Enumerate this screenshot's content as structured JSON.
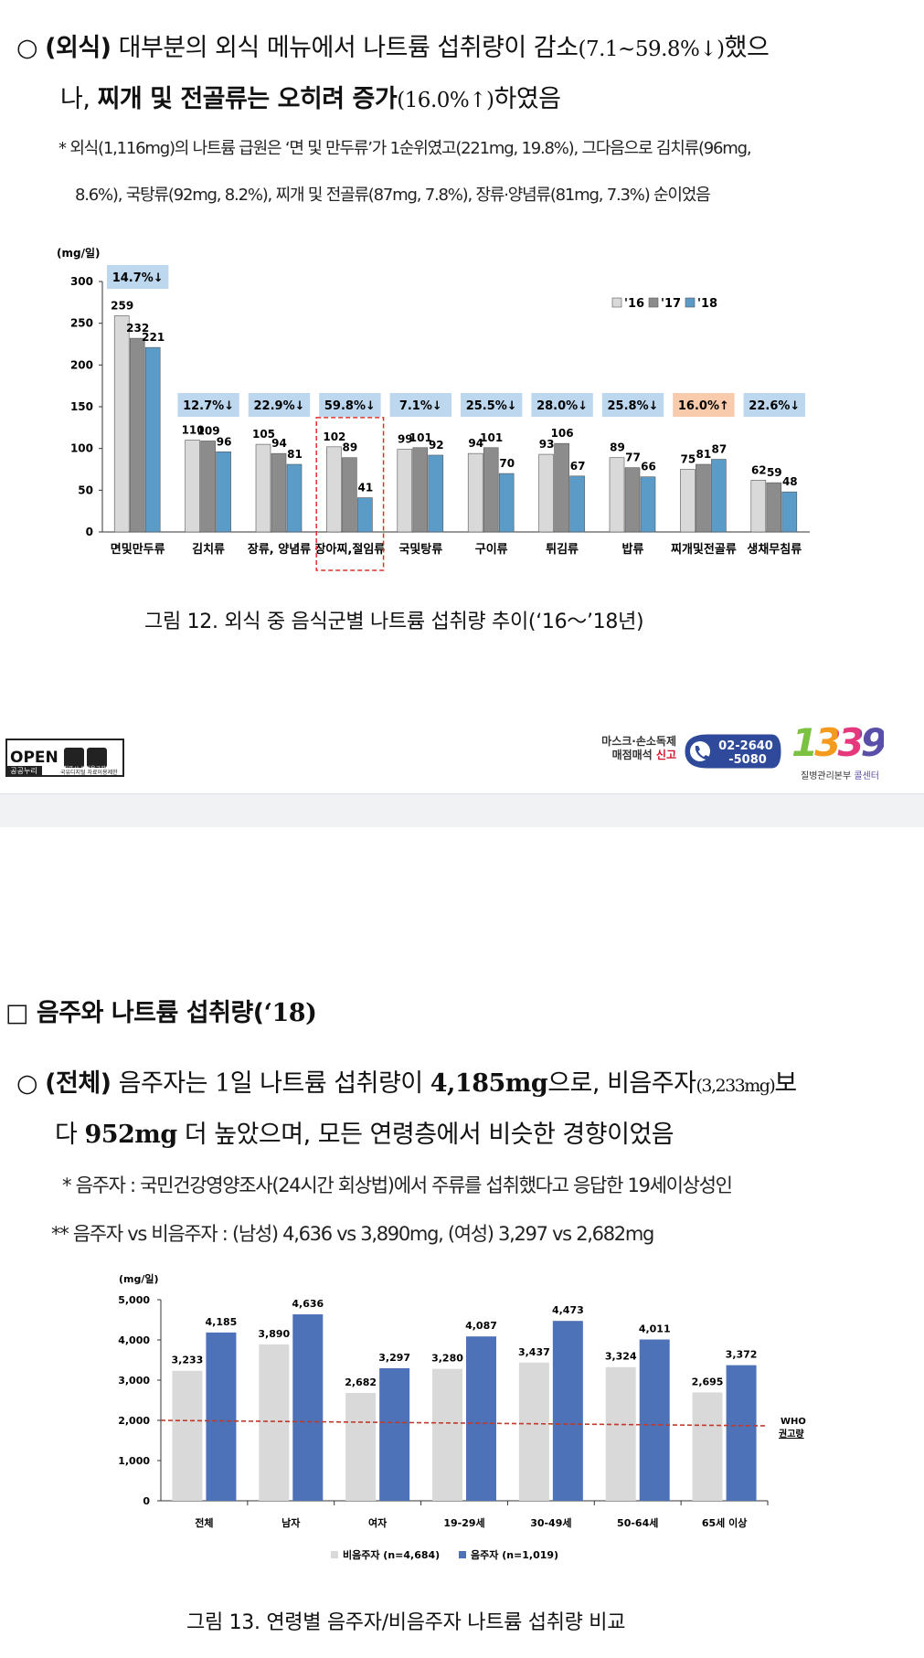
{
  "section1": {
    "para1_line1": [
      "○ ",
      "(외식)",
      " 대부분의 외식 메뉴에서 나트륨 섭취량이 감소",
      "(7.1~59.8%↓)",
      "했으"
    ],
    "para1_line2": [
      "나, ",
      "찌개 및 전골류는 오히려 증가",
      "(16.0%↑)",
      "하였음"
    ],
    "note_line1": "* 외식(1,116mg)의 나트륨 급원은 ‘면 및 만두류’가 1순위였고(221mg, 19.8%), 그다음으로 김치류(96mg,",
    "note_line2": "8.6%), 국탕류(92mg, 8.2%), 찌개 및 전골류(87mg, 7.8%), 장류·양념류(81mg, 7.3%) 순이었음",
    "caption": "그림 12. 외식 중 음식군별 나트륨 섭취량 추이(‘16～’18년)"
  },
  "footer": {
    "open_label": "OPEN",
    "open_sub": "공공누리",
    "open_sub2": "출처표시 상업용금지",
    "open_sub3": "국유디지털 자료이용제한",
    "hotline_text1": "마스크·손소독제",
    "hotline_text2": "매점매석 ",
    "hotline_text3": "신고",
    "hotline_number1": "02-2640",
    "hotline_number2": "-5080",
    "callcenter_number": "1339",
    "callcenter_label1": "질병관리본부 ",
    "callcenter_label2": "콜센터"
  },
  "section2": {
    "heading": [
      "□ 음주와 나트륨 섭취량(",
      "‘18)"
    ],
    "para_line1": [
      "○ ",
      "(전체)",
      " 음주자는 ",
      "1",
      "일 나트륨 섭취량이 ",
      "4,185mg",
      "으로, 비음주자",
      "(3,233mg)",
      "보"
    ],
    "para_line2": [
      "다 ",
      "952mg",
      " 더 높았으며, 모든 연령층에서 비슷한 경향이었음"
    ],
    "note1": "* 음주자 : 국민건강영양조사(24시간 회상법)에서 주류를 섭취했다고 응답한 19세이상성인",
    "note2": "** 음주자 vs 비음주자 : (남성) 4,636 vs 3,890mg, (여성) 3,297 vs 2,682mg",
    "caption": "그림 13. 연령별 음주자/비음주자 나트륨 섭취량 비교"
  },
  "chart_data": [
    {
      "type": "bar",
      "ylabel": "(mg/일)",
      "ylim": [
        0,
        300
      ],
      "yticks": [
        "0",
        "50",
        "100",
        "150",
        "200",
        "250",
        "300"
      ],
      "categories": [
        "면및만두류",
        "김치류",
        "장류, 양념류",
        "장아찌,절임류",
        "국및탕류",
        "구이류",
        "튀김류",
        "밥류",
        "찌개및전골류",
        "생채무침류"
      ],
      "series": [
        {
          "name": "'16",
          "color": "#d9d9d9",
          "values": [
            259,
            110,
            105,
            102,
            99,
            94,
            93,
            89,
            75,
            62
          ]
        },
        {
          "name": "'17",
          "color": "#8c8c8c",
          "values": [
            232,
            109,
            94,
            89,
            101,
            101,
            106,
            77,
            81,
            59
          ]
        },
        {
          "name": "'18",
          "color": "#5b9bc8",
          "values": [
            221,
            96,
            81,
            41,
            92,
            70,
            67,
            66,
            87,
            48
          ]
        }
      ],
      "change_labels": [
        "14.7%↓",
        "12.7%↓",
        "22.9%↓",
        "59.8%↓",
        "7.1%↓",
        "25.5%↓",
        "28.0%↓",
        "25.8%↓",
        "16.0%↑",
        "22.6%↓"
      ],
      "change_colors": [
        "#bdd7ee",
        "#bdd7ee",
        "#bdd7ee",
        "#bdd7ee",
        "#bdd7ee",
        "#bdd7ee",
        "#bdd7ee",
        "#bdd7ee",
        "#f8cbad",
        "#bdd7ee"
      ],
      "highlight_category": "장아찌,절임류",
      "legend_position": "top-right",
      "grid": false
    },
    {
      "type": "bar",
      "ylabel": "(mg/일)",
      "ylim": [
        0,
        5000
      ],
      "yticks": [
        "0",
        "1,000",
        "2,000",
        "3,000",
        "4,000",
        "5,000"
      ],
      "categories": [
        "전체",
        "남자",
        "여자",
        "19-29세",
        "30-49세",
        "50-64세",
        "65세 이상"
      ],
      "series": [
        {
          "name": "비음주자 (n=4,684)",
          "color": "#d9d9d9",
          "values": [
            3233,
            3890,
            2682,
            3280,
            3437,
            3324,
            2695
          ],
          "labels": [
            "3,233",
            "3,890",
            "2,682",
            "3,280",
            "3,437",
            "3,324",
            "2,695"
          ]
        },
        {
          "name": "음주자 (n=1,019)",
          "color": "#4e72b8",
          "values": [
            4185,
            4636,
            3297,
            4087,
            4473,
            4011,
            3372
          ],
          "labels": [
            "4,185",
            "4,636",
            "3,297",
            "4,087",
            "4,473",
            "4,011",
            "3,372"
          ]
        }
      ],
      "reference_line": {
        "value": 2000,
        "label_line1": "WHO",
        "label_line2": "권고량",
        "color": "#c0392b"
      },
      "legend_position": "bottom",
      "grid": false
    }
  ]
}
